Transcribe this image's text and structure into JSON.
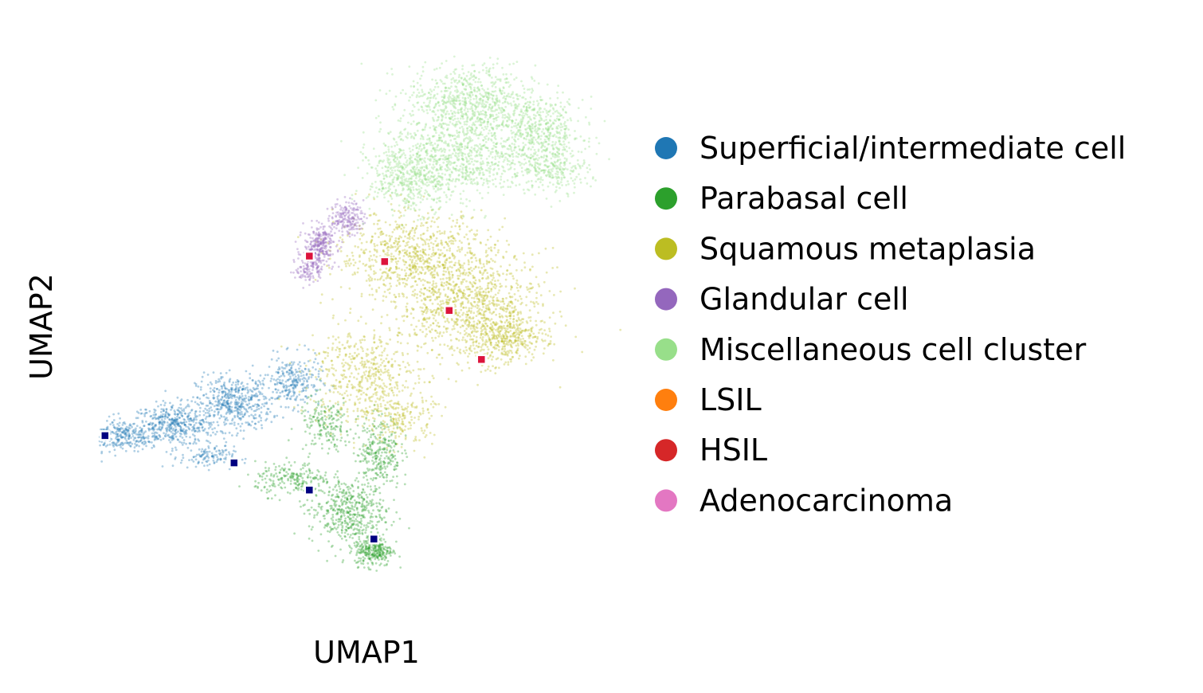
{
  "chart_data": {
    "type": "scatter",
    "title": "",
    "xlabel": "UMAP1",
    "ylabel": "UMAP2",
    "axes_visible": false,
    "grid": false,
    "legend_placement": "right",
    "xlim": [
      0,
      10
    ],
    "ylim": [
      0,
      10
    ],
    "series": [
      {
        "name": "Superficial/intermediate cell",
        "color": "#1f77b4",
        "regions": [
          [
            0.4,
            2.9,
            0.7,
            0.28,
            0.7
          ],
          [
            1.4,
            3.1,
            0.8,
            0.38,
            0.9
          ],
          [
            2.5,
            3.5,
            0.7,
            0.5,
            0.9
          ],
          [
            3.6,
            3.9,
            0.5,
            0.45,
            0.6
          ],
          [
            2.0,
            2.5,
            0.5,
            0.2,
            0.4
          ]
        ]
      },
      {
        "name": "Parabasal cell",
        "color": "#2ca02c",
        "regions": [
          [
            5.1,
            0.8,
            0.35,
            0.3,
            1.0
          ],
          [
            4.6,
            1.5,
            0.7,
            0.6,
            0.8
          ],
          [
            5.2,
            2.6,
            0.4,
            0.7,
            0.6
          ],
          [
            3.6,
            2.1,
            0.7,
            0.3,
            0.5
          ],
          [
            4.2,
            3.1,
            0.5,
            0.5,
            0.4
          ]
        ]
      },
      {
        "name": "Squamous metaplasia",
        "color": "#bcbd22",
        "regions": [
          [
            6.9,
            5.3,
            1.3,
            1.0,
            1.0
          ],
          [
            5.8,
            6.2,
            1.4,
            0.8,
            0.8
          ],
          [
            7.6,
            4.7,
            0.7,
            0.4,
            0.7
          ],
          [
            4.9,
            4.0,
            1.0,
            0.9,
            0.6
          ],
          [
            5.6,
            3.2,
            0.6,
            0.5,
            0.4
          ]
        ]
      },
      {
        "name": "Glandular cell",
        "color": "#9467bd",
        "regions": [
          [
            4.1,
            6.4,
            0.3,
            0.35,
            0.9
          ],
          [
            4.6,
            6.9,
            0.3,
            0.3,
            0.7
          ],
          [
            3.9,
            6.0,
            0.25,
            0.3,
            0.5
          ]
        ]
      },
      {
        "name": "Miscellaneous cell cluster",
        "color": "#98df8a",
        "regions": [
          [
            6.9,
            9.0,
            1.2,
            0.7,
            1.0
          ],
          [
            6.7,
            8.0,
            1.5,
            0.7,
            0.9
          ],
          [
            8.2,
            8.5,
            0.8,
            0.6,
            0.7
          ],
          [
            5.8,
            7.6,
            0.8,
            0.6,
            0.7
          ],
          [
            8.5,
            7.8,
            0.6,
            0.4,
            0.5
          ]
        ]
      },
      {
        "name": "LSIL",
        "color": "#ff7f0e",
        "regions": []
      },
      {
        "name": "HSIL",
        "color": "#d62728",
        "regions": []
      },
      {
        "name": "Adenocarcinoma",
        "color": "#e377c2",
        "regions": []
      }
    ],
    "highlight_points": [
      {
        "group": "red",
        "color": "#dc143c",
        "points": [
          [
            3.9,
            6.2
          ],
          [
            5.3,
            6.1
          ],
          [
            6.5,
            5.2
          ],
          [
            7.1,
            4.3
          ]
        ]
      },
      {
        "group": "navy",
        "color": "#000080",
        "points": [
          [
            0.1,
            2.9
          ],
          [
            2.5,
            2.4
          ],
          [
            3.9,
            1.9
          ],
          [
            5.1,
            1.0
          ]
        ]
      }
    ]
  }
}
